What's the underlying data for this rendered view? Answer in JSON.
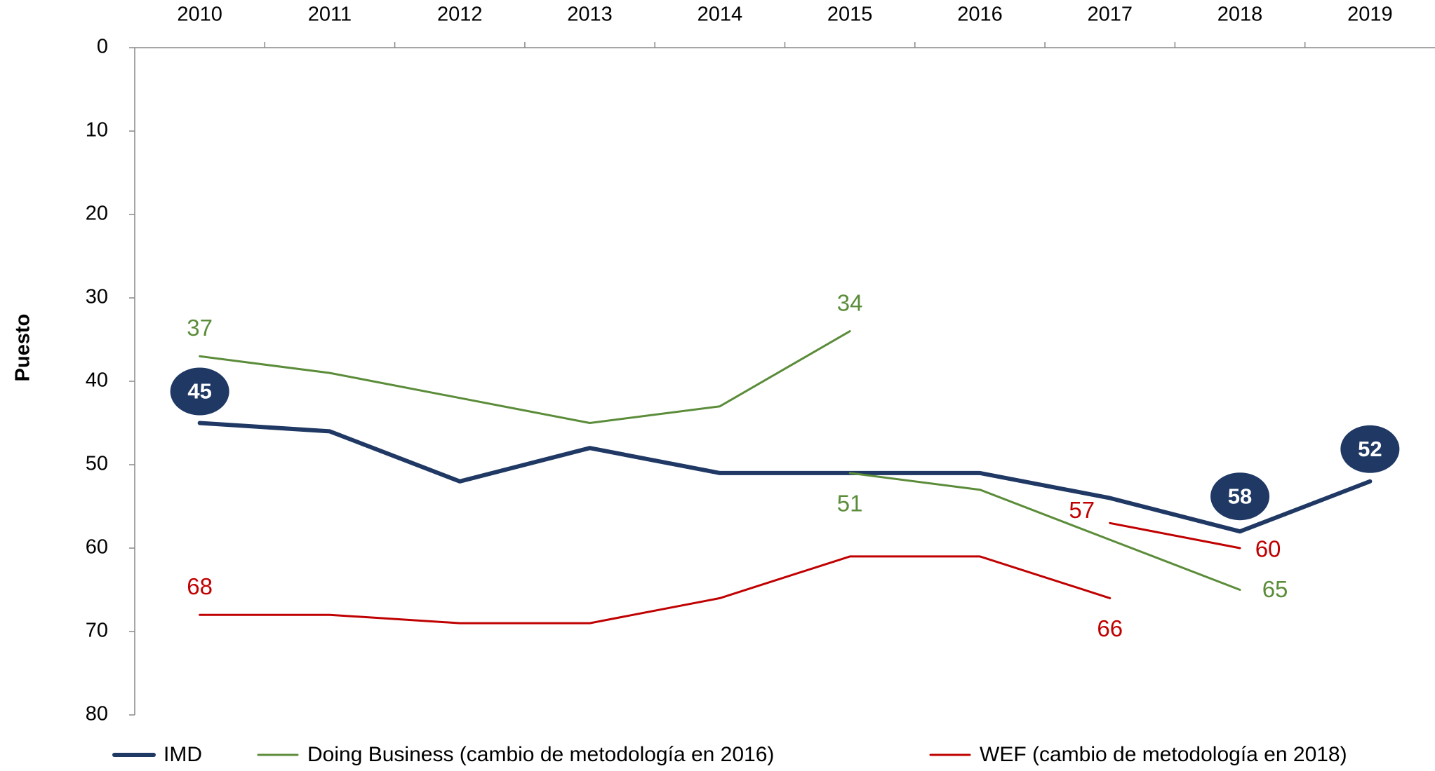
{
  "chart_data": {
    "type": "line",
    "y_label": "Puesto",
    "categories": [
      "2010",
      "2011",
      "2012",
      "2013",
      "2014",
      "2015",
      "2016",
      "2017",
      "2018",
      "2019"
    ],
    "ylim": [
      0,
      80
    ],
    "yticks": [
      0,
      10,
      20,
      30,
      40,
      50,
      60,
      70,
      80
    ],
    "y_inverted": true,
    "grid": false,
    "series": [
      {
        "name": "IMD",
        "color": "#1f3864",
        "segments": [
          [
            45,
            46,
            52,
            48,
            51,
            51,
            51,
            54,
            58,
            52
          ]
        ]
      },
      {
        "name": "Doing Business (cambio de metodología en 2016)",
        "color": "#5b8c3a",
        "segments": [
          [
            37,
            39,
            42,
            45,
            43,
            34,
            null,
            null,
            null,
            null
          ],
          [
            null,
            null,
            null,
            null,
            null,
            51,
            53,
            59,
            65,
            null
          ]
        ]
      },
      {
        "name": "WEF (cambio de metodología en 2018)",
        "color": "#c00000",
        "segments": [
          [
            68,
            68,
            69,
            69,
            66,
            61,
            61,
            66,
            null,
            null
          ],
          [
            null,
            null,
            null,
            null,
            null,
            null,
            null,
            57,
            60,
            null
          ]
        ]
      }
    ]
  }
}
